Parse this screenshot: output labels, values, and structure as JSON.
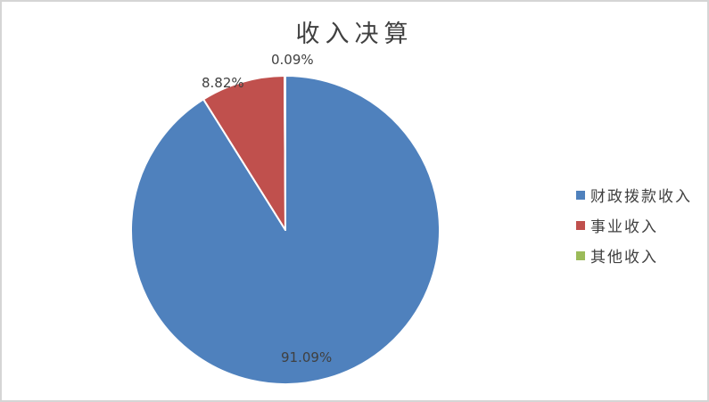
{
  "chart_data": {
    "type": "pie",
    "title": "收入决算",
    "categories": [
      "财政拨款收入",
      "事业收入",
      "其他收入"
    ],
    "values": [
      91.09,
      8.82,
      0.09
    ],
    "data_labels": [
      "91.09%",
      "8.82%",
      "0.09%"
    ],
    "colors": [
      "#4F81BD",
      "#C0504D",
      "#9BBB59"
    ],
    "slice_border_color": "#FFFFFF",
    "text_color": "#404040",
    "frame_border_color": "#D5D5D5",
    "legend_position": "right",
    "start_angle_deg": 0,
    "direction": "clockwise",
    "unit": "%"
  }
}
